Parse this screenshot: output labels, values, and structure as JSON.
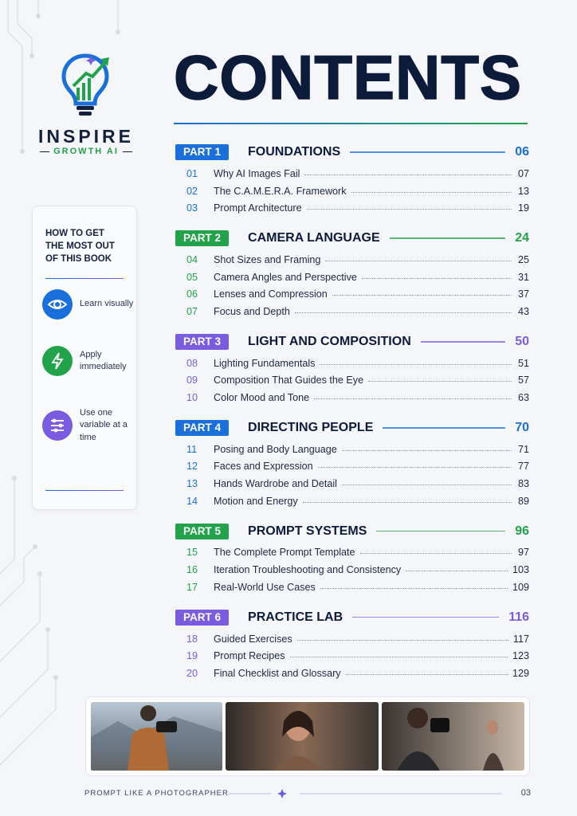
{
  "brand": {
    "name": "INSPIRE",
    "tagline": "GROWTH AI"
  },
  "title": "CONTENTS",
  "sidebar": {
    "heading": "HOW TO GET THE MOST OUT OF THIS BOOK",
    "tips": [
      {
        "text": "Learn visually",
        "color": "#1a6fdb"
      },
      {
        "text": "Apply immediately",
        "color": "#22a24a"
      },
      {
        "text": "Use one variable at a time",
        "color": "#7b5ce0"
      }
    ]
  },
  "parts": [
    {
      "label": "PART 1",
      "title": "FOUNDATIONS",
      "page": "06",
      "color": "#1a6fdb",
      "chapters": [
        {
          "number": "01",
          "title": "Why AI Images Fail",
          "page": "07"
        },
        {
          "number": "02",
          "title": "The C.A.M.E.R.A. Framework",
          "page": "13"
        },
        {
          "number": "03",
          "title": "Prompt Architecture",
          "page": "19"
        }
      ]
    },
    {
      "label": "PART 2",
      "title": "CAMERA LANGUAGE",
      "page": "24",
      "color": "#22a24a",
      "chapters": [
        {
          "number": "04",
          "title": "Shot Sizes and Framing",
          "page": "25"
        },
        {
          "number": "05",
          "title": "Camera Angles and Perspective",
          "page": "31"
        },
        {
          "number": "06",
          "title": "Lenses and Compression",
          "page": "37"
        },
        {
          "number": "07",
          "title": "Focus and Depth",
          "page": "43"
        }
      ]
    },
    {
      "label": "PART 3",
      "title": "LIGHT AND COMPOSITION",
      "page": "50",
      "color": "#7b5ce0",
      "chapters": [
        {
          "number": "08",
          "title": "Lighting Fundamentals",
          "page": "51"
        },
        {
          "number": "09",
          "title": "Composition That Guides the Eye",
          "page": "57"
        },
        {
          "number": "10",
          "title": "Color Mood and Tone",
          "page": "63"
        }
      ]
    },
    {
      "label": "PART 4",
      "title": "DIRECTING PEOPLE",
      "page": "70",
      "color": "#1a6fdb",
      "chapters": [
        {
          "number": "11",
          "title": "Posing and Body Language",
          "page": "71"
        },
        {
          "number": "12",
          "title": "Faces and Expression",
          "page": "77"
        },
        {
          "number": "13",
          "title": "Hands Wardrobe and Detail",
          "page": "83"
        },
        {
          "number": "14",
          "title": "Motion and Energy",
          "page": "89"
        }
      ]
    },
    {
      "label": "PART 5",
      "title": "PROMPT SYSTEMS",
      "page": "96",
      "color": "#22a24a",
      "chapters": [
        {
          "number": "15",
          "title": "The Complete Prompt Template",
          "page": "97"
        },
        {
          "number": "16",
          "title": "Iteration Troubleshooting and Consistency",
          "page": "103"
        },
        {
          "number": "17",
          "title": "Real-World Use Cases",
          "page": "109"
        }
      ]
    },
    {
      "label": "PART 6",
      "title": "PRACTICE LAB",
      "page": "116",
      "color": "#7b5ce0",
      "chapters": [
        {
          "number": "18",
          "title": "Guided Exercises",
          "page": "117"
        },
        {
          "number": "19",
          "title": "Prompt Recipes",
          "page": "123"
        },
        {
          "number": "20",
          "title": "Final Checklist and Glossary",
          "page": "129"
        }
      ]
    }
  ],
  "footer": {
    "text": "PROMPT LIKE A PHOTOGRAPHER",
    "page": "03"
  }
}
